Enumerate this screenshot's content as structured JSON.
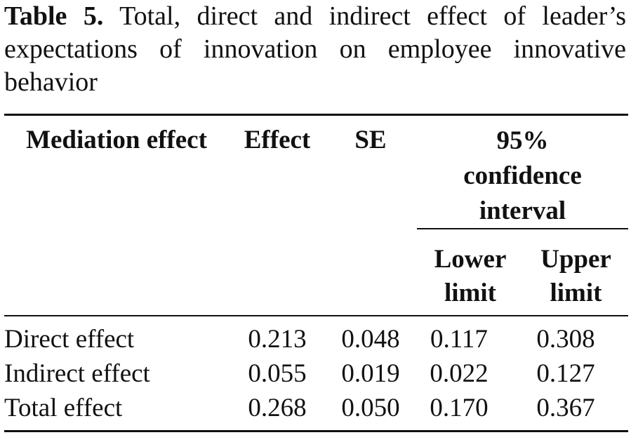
{
  "caption": {
    "label": "Table 5.",
    "text": "Total, direct and indirect effect of leader’s expectations of innovation on employee innovative behavior"
  },
  "table": {
    "headers": {
      "mediation_effect": "Mediation effect",
      "effect": "Effect",
      "se": "SE",
      "ci_line1": "95%",
      "ci_line2": "confidence",
      "ci_line3": "interval",
      "lower_line1": "Lower",
      "lower_line2": "limit",
      "upper_line1": "Upper",
      "upper_line2": "limit"
    },
    "rows": [
      {
        "label": "Direct effect",
        "effect": "0.213",
        "se": "0.048",
        "lower": "0.117",
        "upper": "0.308"
      },
      {
        "label": "Indirect effect",
        "effect": "0.055",
        "se": "0.019",
        "lower": "0.022",
        "upper": "0.127"
      },
      {
        "label": "Total effect",
        "effect": "0.268",
        "se": "0.050",
        "lower": "0.170",
        "upper": "0.367"
      }
    ]
  }
}
